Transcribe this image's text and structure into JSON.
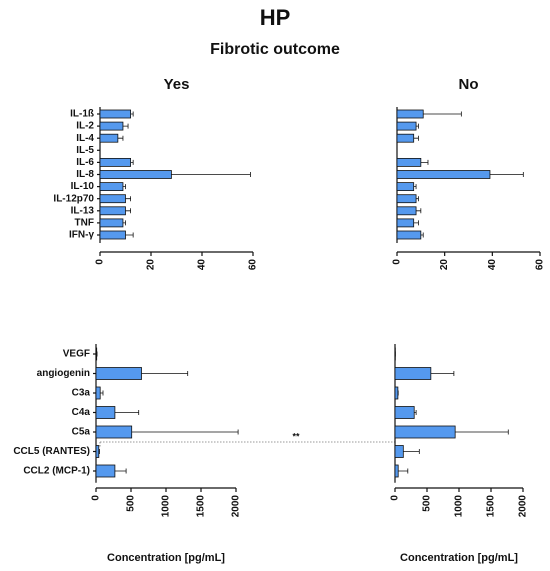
{
  "title": "HP",
  "subtitle": "Fibrotic outcome",
  "annotation": "**",
  "chart_data": [
    {
      "type": "bar",
      "orientation": "horizontal",
      "title": "Yes",
      "color": "#5599ee",
      "categories": [
        "IL-1ß",
        "IL-2",
        "IL-4",
        "IL-5",
        "IL-6",
        "IL-8",
        "IL-10",
        "IL-12p70",
        "IL-13",
        "TNF",
        "IFN-γ"
      ],
      "values": [
        12,
        9,
        7,
        0,
        12,
        28,
        9,
        10,
        10,
        9,
        10
      ],
      "errors": [
        1,
        2,
        2,
        0,
        1,
        31,
        1,
        2,
        2,
        1,
        3
      ],
      "xlim": [
        0,
        60
      ],
      "xticks": [
        0,
        20,
        40,
        60
      ]
    },
    {
      "type": "bar",
      "orientation": "horizontal",
      "title": "No",
      "color": "#5599ee",
      "values": [
        11,
        8,
        7,
        0,
        10,
        39,
        7,
        8,
        8,
        7,
        10
      ],
      "errors": [
        16,
        1,
        2,
        0,
        3,
        14,
        1,
        1,
        2,
        2,
        1
      ],
      "xlim": [
        0,
        60
      ],
      "xticks": [
        0,
        20,
        40,
        60
      ]
    },
    {
      "type": "bar",
      "orientation": "horizontal",
      "color": "#5599ee",
      "xlabel": "Concentration [pg/mL]",
      "categories": [
        "VEGF",
        "angiogenin",
        "C3a",
        "C4a",
        "C5a",
        "CCL5 (RANTES)",
        "CCL2 (MCP-1)"
      ],
      "values": [
        10,
        650,
        60,
        270,
        510,
        40,
        270
      ],
      "errors": [
        5,
        660,
        40,
        340,
        1520,
        10,
        160
      ],
      "xlim": [
        0,
        2000
      ],
      "xticks": [
        0,
        500,
        1000,
        1500,
        2000
      ]
    },
    {
      "type": "bar",
      "orientation": "horizontal",
      "color": "#5599ee",
      "xlabel": "Concentration [pg/mL]",
      "values": [
        5,
        560,
        45,
        300,
        940,
        130,
        50
      ],
      "errors": [
        0,
        360,
        5,
        30,
        830,
        250,
        150
      ],
      "xlim": [
        0,
        2000
      ],
      "xticks": [
        0,
        500,
        1000,
        1500,
        2000
      ]
    }
  ]
}
